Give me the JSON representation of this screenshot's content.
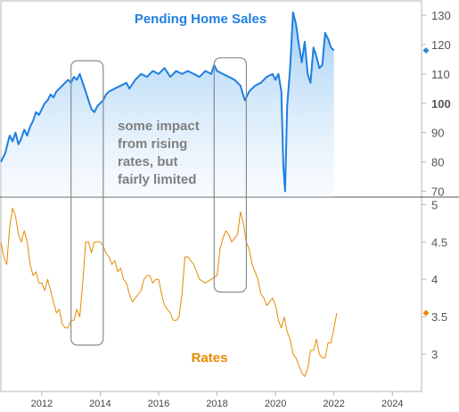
{
  "chart_data": [
    {
      "type": "area",
      "title": "Pending Home Sales",
      "color": "#1f7fe0",
      "ylim": [
        68,
        134
      ],
      "yticks": [
        "130",
        "120",
        "110",
        "100",
        "90",
        "80",
        "70"
      ],
      "ytick_values": [
        130,
        120,
        110,
        100,
        90,
        80,
        70
      ],
      "bold_ytick": "100",
      "last_value_marker": 118,
      "series": [
        {
          "x": [
            2010.6,
            2010.75,
            2010.9,
            2011.0,
            2011.1,
            2011.2,
            2011.3,
            2011.4,
            2011.5,
            2011.6,
            2011.7,
            2011.8,
            2011.9,
            2012.0,
            2012.1,
            2012.2,
            2012.3,
            2012.4,
            2012.5,
            2012.6,
            2012.7,
            2012.8,
            2012.9,
            2013.0,
            2013.1,
            2013.2,
            2013.3,
            2013.4,
            2013.5,
            2013.6,
            2013.7,
            2013.8,
            2013.9,
            2014.0,
            2014.1,
            2014.2,
            2014.3,
            2014.5,
            2014.7,
            2014.9,
            2015.0,
            2015.2,
            2015.4,
            2015.6,
            2015.8,
            2016.0,
            2016.2,
            2016.4,
            2016.6,
            2016.8,
            2017.0,
            2017.2,
            2017.4,
            2017.6,
            2017.8,
            2017.9,
            2018.0,
            2018.2,
            2018.4,
            2018.6,
            2018.8,
            2018.95,
            2019.1,
            2019.3,
            2019.5,
            2019.7,
            2019.9,
            2020.0,
            2020.1,
            2020.2,
            2020.27,
            2020.33,
            2020.4,
            2020.5,
            2020.6,
            2020.7,
            2020.8,
            2020.9,
            2021.0,
            2021.1,
            2021.2,
            2021.3,
            2021.4,
            2021.5,
            2021.6,
            2021.7,
            2021.8,
            2021.9,
            2022.0
          ],
          "values": [
            80,
            83,
            89,
            87,
            90,
            86,
            88,
            91,
            89,
            92,
            94,
            97,
            96,
            98,
            100,
            101,
            103,
            102,
            104,
            105,
            106,
            107,
            108,
            107,
            109,
            108,
            110,
            107,
            104,
            101,
            98,
            97,
            99,
            100,
            101,
            103,
            104,
            105,
            106,
            107,
            105,
            108,
            110,
            109,
            111,
            110,
            112,
            109,
            111,
            110,
            111,
            110,
            109,
            111,
            110,
            113,
            111,
            110,
            109,
            108,
            106,
            101,
            104,
            106,
            107,
            109,
            110,
            108,
            110,
            104,
            78,
            70,
            99,
            112,
            131,
            127,
            120,
            114,
            121,
            110,
            107,
            119,
            116,
            112,
            113,
            124,
            122,
            119,
            118
          ]
        }
      ]
    },
    {
      "type": "line",
      "title": "Rates",
      "color": "#e58a00",
      "ylim": [
        2.5,
        5.1
      ],
      "yticks": [
        "5",
        "4.5",
        "4",
        "3.5",
        "3"
      ],
      "ytick_values": [
        5,
        4.5,
        4,
        3.5,
        3
      ],
      "last_value_marker": 3.55,
      "series": [
        {
          "x": [
            2010.6,
            2010.7,
            2010.8,
            2010.9,
            2011.0,
            2011.1,
            2011.2,
            2011.3,
            2011.4,
            2011.5,
            2011.6,
            2011.7,
            2011.8,
            2011.9,
            2012.0,
            2012.1,
            2012.2,
            2012.3,
            2012.4,
            2012.5,
            2012.6,
            2012.7,
            2012.8,
            2012.9,
            2013.0,
            2013.1,
            2013.2,
            2013.3,
            2013.4,
            2013.5,
            2013.6,
            2013.7,
            2013.8,
            2013.9,
            2014.0,
            2014.1,
            2014.2,
            2014.3,
            2014.4,
            2014.5,
            2014.6,
            2014.7,
            2014.8,
            2014.9,
            2015.0,
            2015.1,
            2015.2,
            2015.3,
            2015.4,
            2015.5,
            2015.6,
            2015.7,
            2015.8,
            2015.9,
            2016.0,
            2016.1,
            2016.2,
            2016.3,
            2016.4,
            2016.5,
            2016.6,
            2016.7,
            2016.8,
            2016.9,
            2017.0,
            2017.2,
            2017.4,
            2017.6,
            2017.8,
            2018.0,
            2018.1,
            2018.2,
            2018.3,
            2018.4,
            2018.5,
            2018.6,
            2018.7,
            2018.8,
            2018.9,
            2019.0,
            2019.1,
            2019.2,
            2019.3,
            2019.4,
            2019.5,
            2019.6,
            2019.7,
            2019.8,
            2019.9,
            2020.0,
            2020.1,
            2020.2,
            2020.3,
            2020.4,
            2020.5,
            2020.6,
            2020.7,
            2020.8,
            2020.9,
            2021.0,
            2021.1,
            2021.2,
            2021.3,
            2021.4,
            2021.5,
            2021.6,
            2021.7,
            2021.8,
            2021.9,
            2022.0,
            2022.1
          ],
          "values": [
            4.5,
            4.3,
            4.2,
            4.7,
            4.95,
            4.85,
            4.6,
            4.5,
            4.65,
            4.5,
            4.2,
            4.05,
            4.1,
            3.95,
            3.95,
            3.85,
            4.0,
            3.85,
            3.7,
            3.55,
            3.6,
            3.4,
            3.35,
            3.35,
            3.45,
            3.45,
            3.6,
            3.5,
            3.95,
            4.5,
            4.5,
            4.35,
            4.5,
            4.5,
            4.5,
            4.45,
            4.35,
            4.3,
            4.2,
            4.25,
            4.1,
            4.15,
            4.0,
            3.95,
            3.8,
            3.7,
            3.75,
            3.8,
            3.85,
            4.0,
            4.05,
            4.05,
            3.95,
            4.0,
            4.0,
            3.8,
            3.65,
            3.6,
            3.55,
            3.45,
            3.45,
            3.5,
            3.8,
            4.3,
            4.3,
            4.2,
            4.0,
            3.95,
            4.0,
            4.05,
            4.4,
            4.55,
            4.65,
            4.6,
            4.5,
            4.55,
            4.6,
            4.9,
            4.75,
            4.5,
            4.4,
            4.2,
            4.1,
            4.0,
            3.8,
            3.75,
            3.65,
            3.7,
            3.75,
            3.65,
            3.45,
            3.35,
            3.5,
            3.3,
            3.2,
            3.0,
            2.95,
            2.85,
            2.75,
            2.7,
            2.8,
            3.05,
            3.05,
            3.2,
            3.0,
            2.95,
            2.95,
            3.15,
            3.15,
            3.35,
            3.55
          ]
        }
      ]
    }
  ],
  "x_axis": {
    "ticks": [
      "2012",
      "2014",
      "2016",
      "2018",
      "2020",
      "2022",
      "2024"
    ],
    "tick_values": [
      2012,
      2014,
      2016,
      2018,
      2020,
      2022,
      2024
    ],
    "xlim": [
      2010.6,
      2025.0
    ]
  },
  "annotation": {
    "lines": [
      "some impact",
      "from rising",
      "rates, but",
      "fairly limited"
    ]
  },
  "highlight_boxes": [
    {
      "x_start": 2013.0,
      "x_end": 2014.1,
      "y_top_home_sales": 114.5,
      "y_bottom_rates": 3.12
    },
    {
      "x_start": 2017.9,
      "x_end": 2019.0,
      "y_top_home_sales": 115.5,
      "y_bottom_rates": 3.83
    }
  ],
  "colors": {
    "divider": "#555555",
    "box": "#8a8a8a",
    "marker_blue": "#2f86d8",
    "marker_orange": "#e58a00"
  }
}
